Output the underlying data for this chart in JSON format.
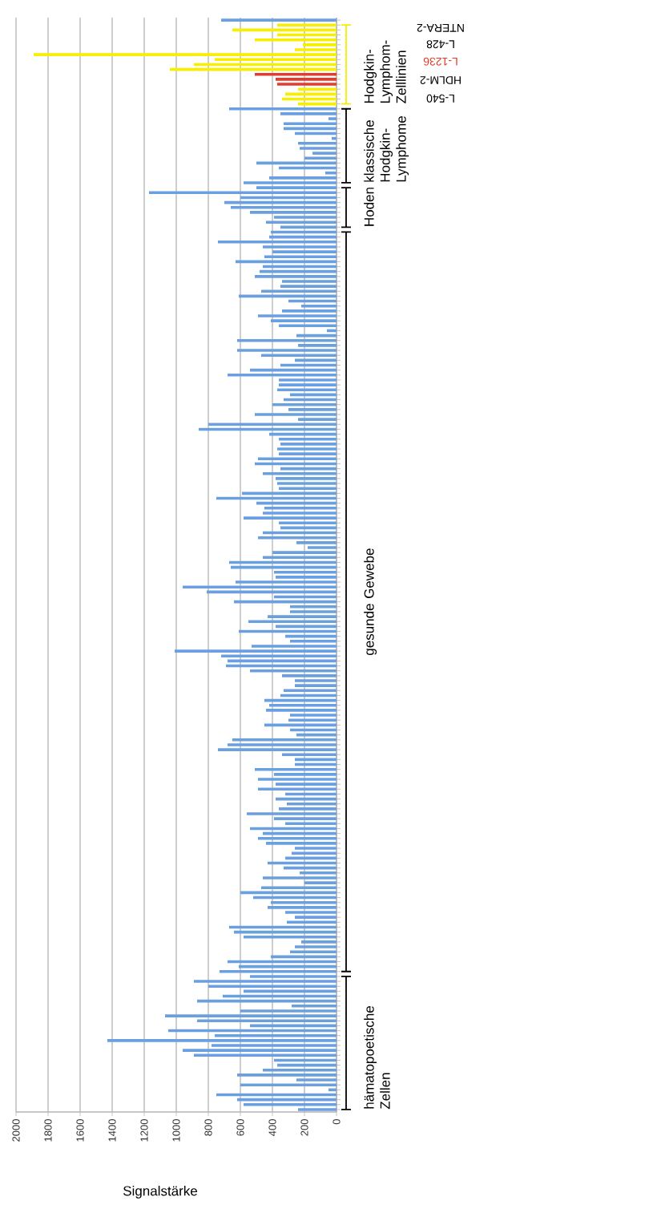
{
  "chart_data": {
    "type": "bar",
    "orientation": "horizontal",
    "xlabel": "Signalstärke",
    "categories": [
      null,
      null,
      null,
      null,
      null,
      null,
      null,
      null,
      null,
      null,
      null,
      null,
      null,
      null,
      null,
      null,
      null,
      null,
      null,
      null,
      null,
      null,
      null,
      null,
      null,
      null,
      null,
      null,
      null,
      null,
      null,
      null,
      null,
      null,
      null,
      null,
      null,
      null,
      null,
      null,
      null,
      null,
      null,
      null,
      null,
      null,
      null,
      null,
      null,
      null,
      null,
      null,
      null,
      null,
      null,
      null,
      null,
      null,
      null,
      null,
      null,
      null,
      null,
      null,
      null,
      null,
      null,
      null,
      null,
      null,
      null,
      null,
      null,
      null,
      null,
      null,
      null,
      null,
      null,
      null,
      null,
      null,
      null,
      null,
      null,
      null,
      null,
      null,
      null,
      null,
      null,
      null,
      null,
      null,
      null,
      null,
      null,
      null,
      null,
      null,
      null,
      null,
      null,
      null,
      null,
      null,
      null,
      null,
      null,
      null,
      null,
      null,
      null,
      null,
      null,
      null,
      null,
      null,
      null,
      null,
      null,
      null,
      null,
      null,
      null,
      null,
      null,
      null,
      null,
      null,
      null,
      null,
      null,
      null,
      null,
      null,
      null,
      null,
      null,
      null,
      null,
      null,
      null,
      null,
      null,
      null,
      null,
      null,
      null,
      null,
      null,
      null,
      null,
      null,
      null,
      null,
      null,
      null,
      null,
      null,
      null,
      null,
      null,
      null,
      null,
      null,
      null,
      null,
      null,
      null,
      null,
      null,
      null,
      null,
      null,
      null,
      null,
      null,
      null,
      null,
      null,
      null,
      null,
      null,
      null,
      null,
      null,
      null,
      null,
      null,
      null,
      null,
      null,
      null,
      null,
      null,
      null,
      null,
      null,
      null,
      null,
      null,
      null,
      null,
      null,
      null,
      null,
      null,
      null,
      null,
      null,
      null,
      null,
      null,
      null,
      null,
      null,
      null,
      null,
      null,
      null,
      null
    ],
    "values": [
      720,
      370,
      650,
      370,
      510,
      210,
      260,
      1890,
      760,
      890,
      1040,
      510,
      380,
      370,
      240,
      320,
      340,
      240,
      670,
      350,
      50,
      330,
      330,
      260,
      30,
      240,
      230,
      150,
      200,
      500,
      360,
      70,
      420,
      580,
      500,
      1170,
      600,
      700,
      660,
      540,
      390,
      440,
      350,
      410,
      420,
      740,
      460,
      400,
      450,
      630,
      460,
      480,
      510,
      340,
      350,
      470,
      610,
      300,
      220,
      340,
      490,
      410,
      360,
      60,
      250,
      620,
      240,
      620,
      470,
      260,
      350,
      540,
      680,
      360,
      360,
      370,
      290,
      330,
      400,
      300,
      510,
      240,
      800,
      860,
      420,
      360,
      350,
      370,
      360,
      490,
      510,
      350,
      460,
      380,
      370,
      360,
      590,
      750,
      500,
      450,
      460,
      580,
      360,
      350,
      460,
      490,
      250,
      180,
      400,
      460,
      670,
      660,
      390,
      380,
      630,
      960,
      810,
      390,
      640,
      290,
      290,
      430,
      550,
      380,
      610,
      320,
      290,
      530,
      1010,
      720,
      680,
      690,
      540,
      340,
      260,
      260,
      330,
      350,
      450,
      420,
      440,
      290,
      300,
      450,
      290,
      250,
      650,
      680,
      740,
      340,
      260,
      260,
      510,
      390,
      490,
      380,
      490,
      320,
      380,
      310,
      360,
      560,
      390,
      320,
      540,
      460,
      490,
      440,
      260,
      280,
      320,
      430,
      330,
      230,
      460,
      200,
      470,
      600,
      520,
      410,
      430,
      320,
      260,
      310,
      670,
      640,
      580,
      220,
      260,
      290,
      410,
      680,
      610,
      730,
      540,
      890,
      800,
      580,
      710,
      870,
      280,
      600,
      1070,
      870,
      540,
      1050,
      760,
      1430,
      780,
      960,
      890,
      390,
      370,
      460,
      620,
      250,
      600,
      50,
      750,
      620,
      580,
      240
    ],
    "colors": [
      "#6a9fe0",
      "#f7ee00",
      "#f7ee00",
      "#f7ee00",
      "#f7ee00",
      "#f7ee00",
      "#f7ee00",
      "#f7ee00",
      "#f7ee00",
      "#f7ee00",
      "#f7ee00",
      "#e53a2c",
      "#e53a2c",
      "#e53a2c",
      "#f7ee00",
      "#f7ee00",
      "#f7ee00",
      "#f7ee00",
      "#6a9fe0",
      "#6a9fe0",
      "#6a9fe0",
      "#6a9fe0",
      "#6a9fe0",
      "#6a9fe0",
      "#6a9fe0",
      "#6a9fe0",
      "#6a9fe0",
      "#6a9fe0",
      "#6a9fe0",
      "#6a9fe0",
      "#6a9fe0",
      "#6a9fe0",
      "#6a9fe0",
      "#6a9fe0",
      "#6a9fe0",
      "#6a9fe0",
      "#6a9fe0",
      "#6a9fe0",
      "#6a9fe0",
      "#6a9fe0",
      "#6a9fe0",
      "#6a9fe0",
      "#6a9fe0",
      "#6a9fe0",
      "#6a9fe0",
      "#6a9fe0",
      "#6a9fe0",
      "#6a9fe0",
      "#6a9fe0",
      "#6a9fe0",
      "#6a9fe0",
      "#6a9fe0",
      "#6a9fe0",
      "#6a9fe0",
      "#6a9fe0",
      "#6a9fe0",
      "#6a9fe0",
      "#6a9fe0",
      "#6a9fe0",
      "#6a9fe0",
      "#6a9fe0",
      "#6a9fe0",
      "#6a9fe0",
      "#6a9fe0",
      "#6a9fe0",
      "#6a9fe0",
      "#6a9fe0",
      "#6a9fe0",
      "#6a9fe0",
      "#6a9fe0",
      "#6a9fe0",
      "#6a9fe0",
      "#6a9fe0",
      "#6a9fe0",
      "#6a9fe0",
      "#6a9fe0",
      "#6a9fe0",
      "#6a9fe0",
      "#6a9fe0",
      "#6a9fe0",
      "#6a9fe0",
      "#6a9fe0",
      "#6a9fe0",
      "#6a9fe0",
      "#6a9fe0",
      "#6a9fe0",
      "#6a9fe0",
      "#6a9fe0",
      "#6a9fe0",
      "#6a9fe0",
      "#6a9fe0",
      "#6a9fe0",
      "#6a9fe0",
      "#6a9fe0",
      "#6a9fe0",
      "#6a9fe0",
      "#6a9fe0",
      "#6a9fe0",
      "#6a9fe0",
      "#6a9fe0",
      "#6a9fe0",
      "#6a9fe0",
      "#6a9fe0",
      "#6a9fe0",
      "#6a9fe0",
      "#6a9fe0",
      "#6a9fe0",
      "#6a9fe0",
      "#6a9fe0",
      "#6a9fe0",
      "#6a9fe0",
      "#6a9fe0",
      "#6a9fe0",
      "#6a9fe0",
      "#6a9fe0",
      "#6a9fe0",
      "#6a9fe0",
      "#6a9fe0",
      "#6a9fe0",
      "#6a9fe0",
      "#6a9fe0",
      "#6a9fe0",
      "#6a9fe0",
      "#6a9fe0",
      "#6a9fe0",
      "#6a9fe0",
      "#6a9fe0",
      "#6a9fe0",
      "#6a9fe0",
      "#6a9fe0",
      "#6a9fe0",
      "#6a9fe0",
      "#6a9fe0",
      "#6a9fe0",
      "#6a9fe0",
      "#6a9fe0",
      "#6a9fe0",
      "#6a9fe0",
      "#6a9fe0",
      "#6a9fe0",
      "#6a9fe0",
      "#6a9fe0",
      "#6a9fe0",
      "#6a9fe0",
      "#6a9fe0",
      "#6a9fe0",
      "#6a9fe0",
      "#6a9fe0",
      "#6a9fe0",
      "#6a9fe0",
      "#6a9fe0",
      "#6a9fe0",
      "#6a9fe0",
      "#6a9fe0",
      "#6a9fe0",
      "#6a9fe0",
      "#6a9fe0",
      "#6a9fe0",
      "#6a9fe0",
      "#6a9fe0",
      "#6a9fe0",
      "#6a9fe0",
      "#6a9fe0",
      "#6a9fe0",
      "#6a9fe0",
      "#6a9fe0",
      "#6a9fe0",
      "#6a9fe0",
      "#6a9fe0",
      "#6a9fe0",
      "#6a9fe0",
      "#6a9fe0",
      "#6a9fe0",
      "#6a9fe0",
      "#6a9fe0",
      "#6a9fe0",
      "#6a9fe0",
      "#6a9fe0",
      "#6a9fe0",
      "#6a9fe0",
      "#6a9fe0",
      "#6a9fe0",
      "#6a9fe0",
      "#6a9fe0",
      "#6a9fe0",
      "#6a9fe0",
      "#6a9fe0",
      "#6a9fe0",
      "#6a9fe0",
      "#6a9fe0",
      "#6a9fe0",
      "#6a9fe0",
      "#6a9fe0",
      "#6a9fe0",
      "#6a9fe0",
      "#6a9fe0",
      "#6a9fe0",
      "#6a9fe0",
      "#6a9fe0",
      "#6a9fe0",
      "#6a9fe0",
      "#6a9fe0",
      "#6a9fe0",
      "#6a9fe0",
      "#6a9fe0",
      "#6a9fe0",
      "#6a9fe0",
      "#6a9fe0",
      "#6a9fe0",
      "#6a9fe0",
      "#6a9fe0",
      "#6a9fe0",
      "#6a9fe0",
      "#6a9fe0",
      "#6a9fe0",
      "#6a9fe0",
      "#6a9fe0",
      "#6a9fe0",
      "#6a9fe0",
      "#6a9fe0",
      "#6a9fe0",
      "#6a9fe0"
    ],
    "xlim": [
      2000,
      0
    ],
    "xticks": [
      0,
      200,
      400,
      600,
      800,
      1000,
      1200,
      1400,
      1600,
      1800,
      2000
    ],
    "grid": "x",
    "annotations": [
      "Hodgkin-Lymphom-Zelllinien",
      "NTERA-2",
      "L-428",
      "L-1236",
      "HDLM-2",
      "L-540",
      "klassische Hodgkin-Lymphome",
      "Hoden",
      "gesunde Gewebe",
      "hämatopoetische Zellen"
    ]
  }
}
